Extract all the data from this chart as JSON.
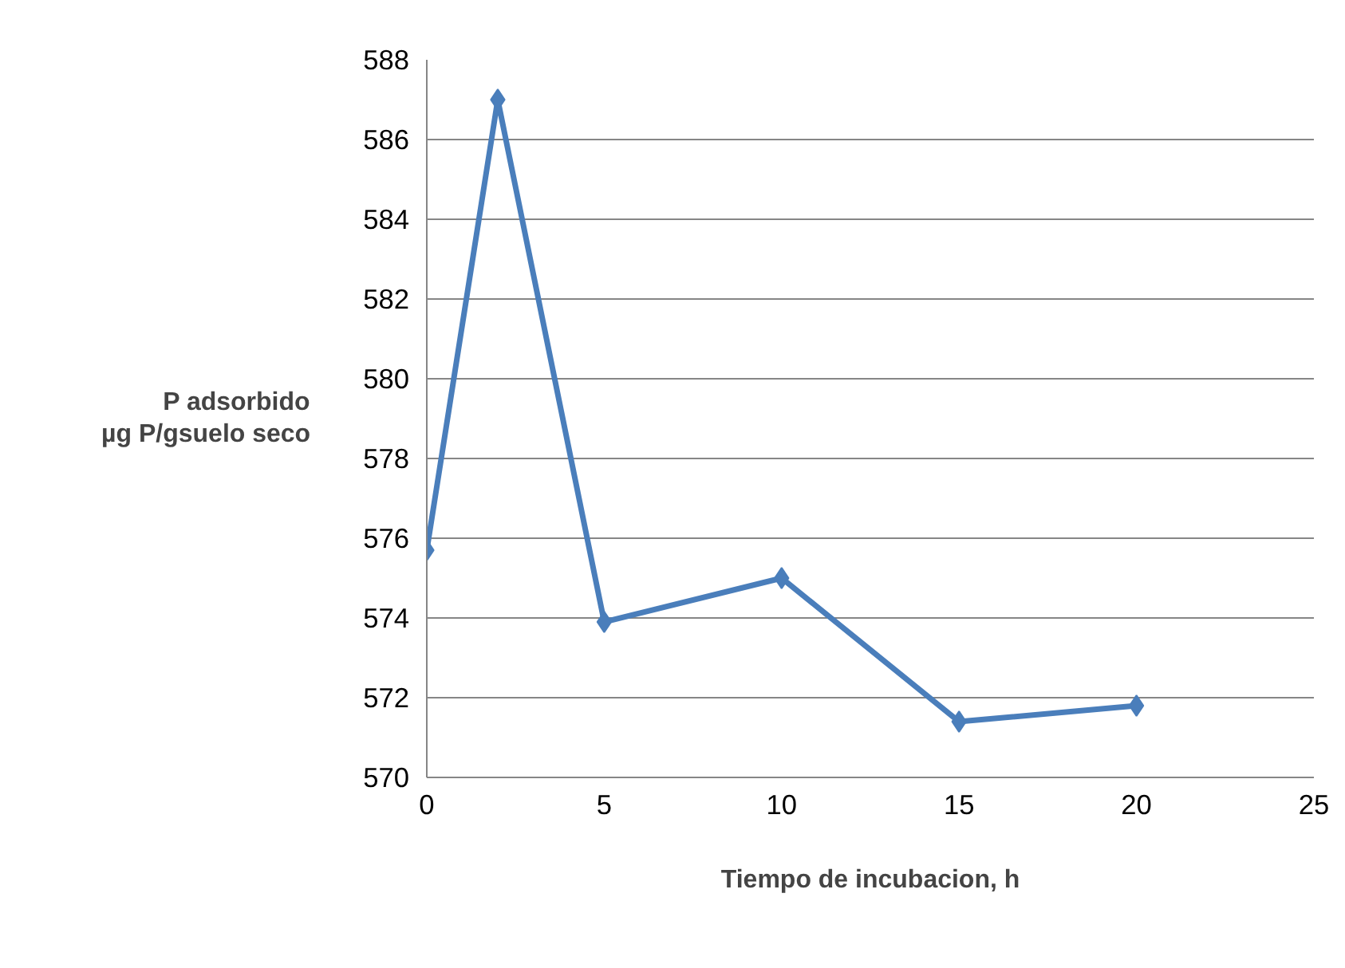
{
  "chart_data": {
    "type": "line",
    "xlabel": "Tiempo de incubacion, h",
    "ylabel": "P adsorbido\nµg P/gsuelo seco",
    "x": [
      0,
      2,
      5,
      10,
      15,
      20
    ],
    "series": [
      {
        "color": "#4a7ebb",
        "values": [
          575.7,
          587.0,
          573.9,
          575.0,
          571.4,
          571.8
        ]
      }
    ],
    "xlim": [
      0,
      25
    ],
    "xticks": [
      0,
      5,
      10,
      15,
      20,
      25
    ],
    "ylim": [
      570,
      588
    ],
    "yticks": [
      570,
      572,
      574,
      576,
      578,
      580,
      582,
      584,
      586,
      588
    ],
    "grid": "y",
    "marker": "diamond",
    "line_style": "solid"
  }
}
